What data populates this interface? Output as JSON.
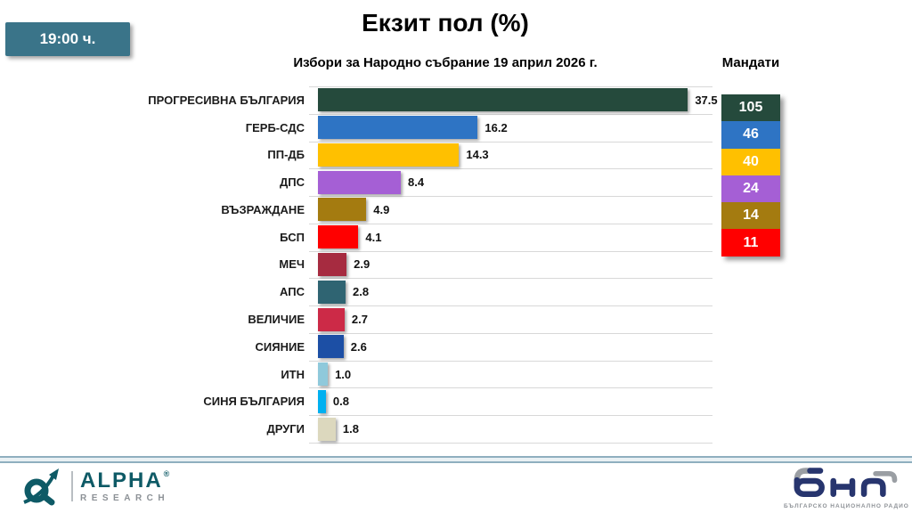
{
  "badge": {
    "time": "19:00 ч."
  },
  "header": {
    "title": "Екзит пол (%)",
    "subtitle": "Избори за Народно събрание 19 април 2026 г.",
    "mandates_label": "Мандати"
  },
  "chart_data": {
    "type": "bar",
    "orientation": "horizontal",
    "title": "Екзит пол (%)",
    "subtitle": "Избори за Народно събрание 19 април 2026 г.",
    "xlim": [
      0,
      40
    ],
    "grid": "horizontal-row-separators",
    "value_label_format": "one-decimal",
    "categories": [
      "ПРОГРЕСИВНА БЪЛГАРИЯ",
      "ГЕРБ-СДС",
      "ПП-ДБ",
      "ДПС",
      "ВЪЗРАЖДАНЕ",
      "БСП",
      "МЕЧ",
      "АПС",
      "ВЕЛИЧИЕ",
      "СИЯНИЕ",
      "ИТН",
      "СИНЯ БЪЛГАРИЯ",
      "ДРУГИ"
    ],
    "values": [
      37.5,
      16.2,
      14.3,
      8.4,
      4.9,
      4.1,
      2.9,
      2.8,
      2.7,
      2.6,
      1.0,
      0.8,
      1.8
    ],
    "bar_colors": [
      "#254A3C",
      "#2E74C4",
      "#FFC000",
      "#A55FD5",
      "#A47B10",
      "#FF0000",
      "#A62B40",
      "#2F6472",
      "#CC2A47",
      "#1C4FA5",
      "#8FC9DB",
      "#00B0F0",
      "#DCD8BE"
    ],
    "mandates": {
      "label": "Мандати",
      "entries": [
        {
          "party": "ПРОГРЕСИВНА БЪЛГАРИЯ",
          "seats": "105",
          "color": "#254A3C"
        },
        {
          "party": "ГЕРБ-СДС",
          "seats": "46",
          "color": "#2E74C4"
        },
        {
          "party": "ПП-ДБ",
          "seats": "40",
          "color": "#FFC000"
        },
        {
          "party": "ДПС",
          "seats": "24",
          "color": "#A55FD5"
        },
        {
          "party": "ВЪЗРАЖДАНЕ",
          "seats": "14",
          "color": "#A47B10"
        },
        {
          "party": "БСП",
          "seats": "11",
          "color": "#FF0000"
        }
      ]
    }
  },
  "footer": {
    "alpha": {
      "brand": "ALPHA",
      "reg": "®",
      "sub": "RESEARCH"
    },
    "bnr": {
      "caption": "БЪЛГАРСКО НАЦИОНАЛНО РАДИО"
    }
  },
  "colors": {
    "badge_background": "#3A7489",
    "divider_line": "#8FAFBF",
    "grid_line": "#D8D8D8",
    "alpha_teal": "#0E5A66",
    "bnr_navy": "#27356E",
    "bnr_gray": "#9A9EA3"
  }
}
